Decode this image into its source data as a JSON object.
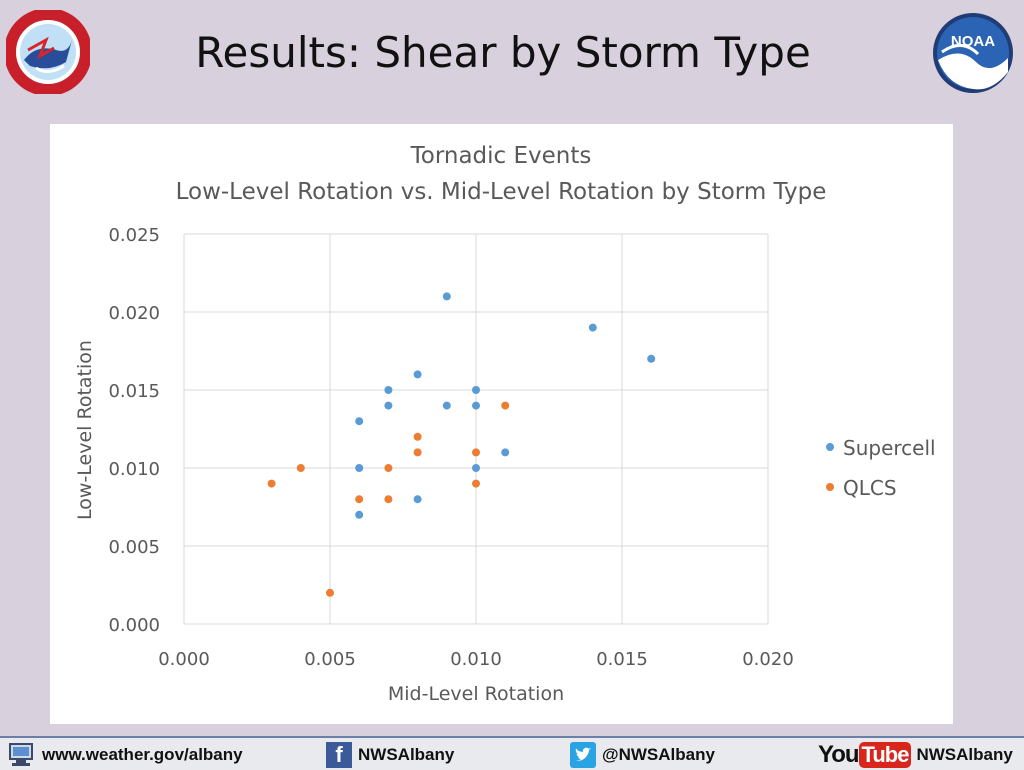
{
  "slide": {
    "title": "Results: Shear by Storm Type"
  },
  "logos": {
    "left": "nws-logo",
    "left_text": "NATIONAL WEATHER SERVICE",
    "right": "noaa-logo",
    "right_text": "NOAA"
  },
  "chart_data": {
    "type": "scatter",
    "title": "Tornadic Events",
    "subtitle": "Low-Level Rotation vs. Mid-Level Rotation by Storm Type",
    "xlabel": "Mid-Level Rotation",
    "ylabel": "Low-Level Rotation",
    "xlim": [
      0.0,
      0.02
    ],
    "ylim": [
      0.0,
      0.025
    ],
    "x_ticks": [
      "0.000",
      "0.005",
      "0.010",
      "0.015",
      "0.020"
    ],
    "y_ticks": [
      "0.000",
      "0.005",
      "0.010",
      "0.015",
      "0.020",
      "0.025"
    ],
    "grid": true,
    "legend_position": "right",
    "series": [
      {
        "name": "Supercell",
        "color": "#5b9bd5",
        "points": [
          [
            0.009,
            0.021
          ],
          [
            0.014,
            0.019
          ],
          [
            0.016,
            0.017
          ],
          [
            0.008,
            0.016
          ],
          [
            0.007,
            0.015
          ],
          [
            0.01,
            0.015
          ],
          [
            0.007,
            0.014
          ],
          [
            0.009,
            0.014
          ],
          [
            0.01,
            0.014
          ],
          [
            0.006,
            0.013
          ],
          [
            0.011,
            0.011
          ],
          [
            0.006,
            0.01
          ],
          [
            0.01,
            0.01
          ],
          [
            0.008,
            0.008
          ],
          [
            0.006,
            0.007
          ]
        ]
      },
      {
        "name": "QLCS",
        "color": "#ed7d31",
        "points": [
          [
            0.011,
            0.014
          ],
          [
            0.008,
            0.012
          ],
          [
            0.008,
            0.011
          ],
          [
            0.01,
            0.011
          ],
          [
            0.004,
            0.01
          ],
          [
            0.007,
            0.01
          ],
          [
            0.003,
            0.009
          ],
          [
            0.01,
            0.009
          ],
          [
            0.006,
            0.008
          ],
          [
            0.007,
            0.008
          ],
          [
            0.005,
            0.002
          ]
        ]
      }
    ]
  },
  "footer": {
    "website": "www.weather.gov/albany",
    "facebook": "NWSAlbany",
    "twitter": "@NWSAlbany",
    "youtube_you": "You",
    "youtube_tube": "Tube",
    "youtube": "NWSAlbany"
  }
}
